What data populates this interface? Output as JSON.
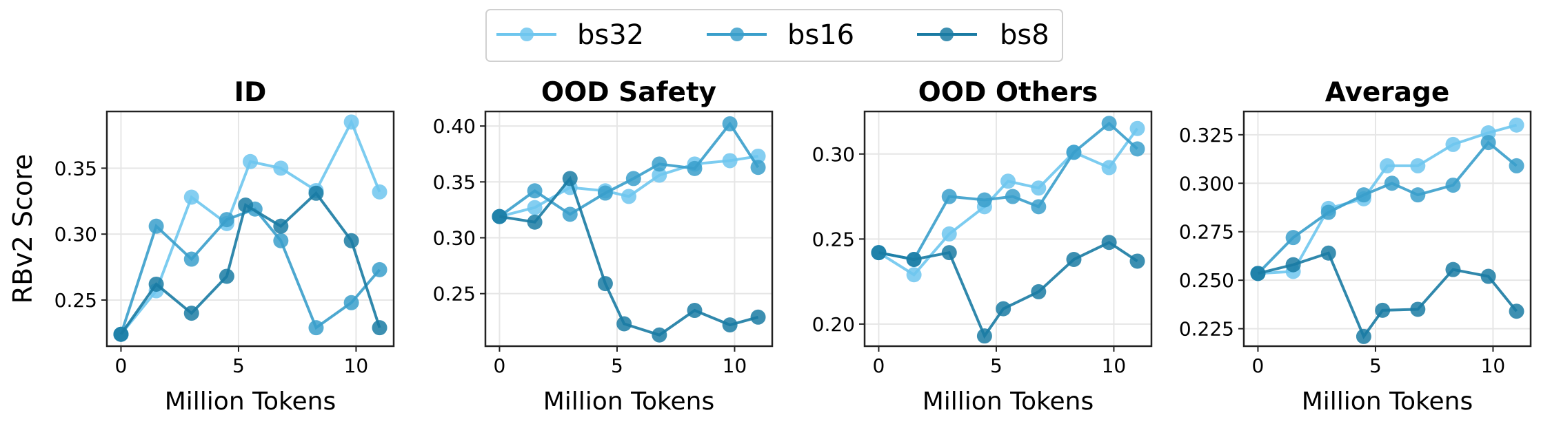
{
  "legend": {
    "placement": "top-center",
    "entries": [
      "bs32",
      "bs16",
      "bs8"
    ]
  },
  "colors": {
    "bs32": "#6ec6ee",
    "bs16": "#3a9fcb",
    "bs8": "#1a7ba3"
  },
  "chart_data": [
    {
      "type": "line",
      "title": "ID",
      "xlabel": "Million Tokens",
      "ylabel": "RBv2 Score",
      "xlim": [
        -0.6,
        11.6
      ],
      "ylim": [
        0.215,
        0.393
      ],
      "xticks": [
        0,
        5,
        10
      ],
      "yticks": [
        0.25,
        0.3,
        0.35
      ],
      "ytick_labels": [
        "0.25",
        "0.30",
        "0.35"
      ],
      "grid": true,
      "series": [
        {
          "name": "bs32",
          "x": [
            0,
            1.5,
            3,
            4.5,
            5.5,
            6.8,
            8.3,
            9.8,
            11
          ],
          "y": [
            0.224,
            0.257,
            0.328,
            0.308,
            0.355,
            0.35,
            0.333,
            0.385,
            0.332
          ]
        },
        {
          "name": "bs16",
          "x": [
            0,
            1.5,
            3,
            4.5,
            5.7,
            6.8,
            8.3,
            9.8,
            11
          ],
          "y": [
            0.224,
            0.306,
            0.281,
            0.311,
            0.319,
            0.295,
            0.229,
            0.248,
            0.273
          ]
        },
        {
          "name": "bs8",
          "x": [
            0,
            1.5,
            3,
            4.5,
            5.3,
            6.8,
            8.3,
            9.8,
            11
          ],
          "y": [
            0.224,
            0.262,
            0.24,
            0.268,
            0.322,
            0.306,
            0.331,
            0.295,
            0.229
          ]
        }
      ]
    },
    {
      "type": "line",
      "title": "OOD Safety",
      "xlabel": "Million Tokens",
      "ylabel": "",
      "xlim": [
        -0.6,
        11.6
      ],
      "ylim": [
        0.203,
        0.413
      ],
      "xticks": [
        0,
        5,
        10
      ],
      "yticks": [
        0.25,
        0.3,
        0.35,
        0.4
      ],
      "ytick_labels": [
        "0.25",
        "0.30",
        "0.35",
        "0.40"
      ],
      "grid": true,
      "series": [
        {
          "name": "bs32",
          "x": [
            0,
            1.5,
            3,
            4.5,
            5.5,
            6.8,
            8.3,
            9.8,
            11
          ],
          "y": [
            0.319,
            0.327,
            0.345,
            0.342,
            0.337,
            0.356,
            0.366,
            0.369,
            0.373
          ]
        },
        {
          "name": "bs16",
          "x": [
            0,
            1.5,
            3,
            4.5,
            5.7,
            6.8,
            8.3,
            9.8,
            11
          ],
          "y": [
            0.319,
            0.342,
            0.321,
            0.34,
            0.353,
            0.366,
            0.362,
            0.402,
            0.363
          ]
        },
        {
          "name": "bs8",
          "x": [
            0,
            1.5,
            3,
            4.5,
            5.3,
            6.8,
            8.3,
            9.8,
            11
          ],
          "y": [
            0.319,
            0.314,
            0.353,
            0.259,
            0.223,
            0.213,
            0.235,
            0.222,
            0.229
          ]
        }
      ]
    },
    {
      "type": "line",
      "title": "OOD Others",
      "xlabel": "Million Tokens",
      "ylabel": "",
      "xlim": [
        -0.6,
        11.6
      ],
      "ylim": [
        0.187,
        0.325
      ],
      "xticks": [
        0,
        5,
        10
      ],
      "yticks": [
        0.2,
        0.25,
        0.3
      ],
      "ytick_labels": [
        "0.20",
        "0.25",
        "0.30"
      ],
      "grid": true,
      "series": [
        {
          "name": "bs32",
          "x": [
            0,
            1.5,
            3,
            4.5,
            5.5,
            6.8,
            8.3,
            9.8,
            11
          ],
          "y": [
            0.242,
            0.229,
            0.253,
            0.269,
            0.284,
            0.28,
            0.301,
            0.292,
            0.315
          ]
        },
        {
          "name": "bs16",
          "x": [
            0,
            1.5,
            3,
            4.5,
            5.7,
            6.8,
            8.3,
            9.8,
            11
          ],
          "y": [
            0.242,
            0.238,
            0.275,
            0.273,
            0.275,
            0.269,
            0.301,
            0.318,
            0.303
          ]
        },
        {
          "name": "bs8",
          "x": [
            0,
            1.5,
            3,
            4.5,
            5.3,
            6.8,
            8.3,
            9.8,
            11
          ],
          "y": [
            0.242,
            0.238,
            0.242,
            0.193,
            0.209,
            0.219,
            0.238,
            0.248,
            0.237
          ]
        }
      ]
    },
    {
      "type": "line",
      "title": "Average",
      "xlabel": "Million Tokens",
      "ylabel": "",
      "xlim": [
        -0.6,
        11.6
      ],
      "ylim": [
        0.216,
        0.337
      ],
      "xticks": [
        0,
        5,
        10
      ],
      "yticks": [
        0.225,
        0.25,
        0.275,
        0.3,
        0.325
      ],
      "ytick_labels": [
        "0.225",
        "0.250",
        "0.275",
        "0.300",
        "0.325"
      ],
      "grid": true,
      "series": [
        {
          "name": "bs32",
          "x": [
            0,
            1.5,
            3,
            4.5,
            5.5,
            6.8,
            8.3,
            9.8,
            11
          ],
          "y": [
            0.2535,
            0.2545,
            0.287,
            0.292,
            0.309,
            0.309,
            0.32,
            0.326,
            0.33
          ]
        },
        {
          "name": "bs16",
          "x": [
            0,
            1.5,
            3,
            4.5,
            5.7,
            6.8,
            8.3,
            9.8,
            11
          ],
          "y": [
            0.2535,
            0.272,
            0.285,
            0.294,
            0.3,
            0.294,
            0.299,
            0.321,
            0.309
          ]
        },
        {
          "name": "bs8",
          "x": [
            0,
            1.5,
            3,
            4.5,
            5.3,
            6.8,
            8.3,
            9.8,
            11
          ],
          "y": [
            0.2535,
            0.258,
            0.264,
            0.221,
            0.2345,
            0.235,
            0.2555,
            0.252,
            0.234
          ]
        }
      ]
    }
  ]
}
